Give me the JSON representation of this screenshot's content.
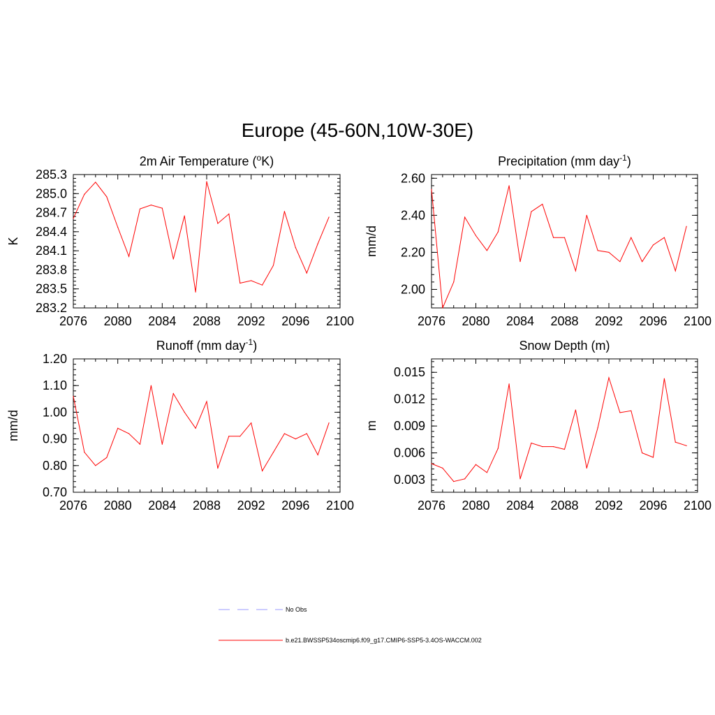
{
  "figure_title": "Europe (45-60N,10W-30E)",
  "colors": {
    "model_line": "#ff0000",
    "obs_line": "#9999ff",
    "axis": "#000000"
  },
  "legend": {
    "obs_label": "No Obs",
    "model_label": "b.e21.BWSSP534oscmip6.f09_g17.CMIP6-SSP5-3.4OS-WACCM.002"
  },
  "chart_data": [
    {
      "type": "line",
      "id": "temp",
      "title_main": "2m Air Temperature (",
      "title_sup": "o",
      "title_tail": "K)",
      "ylabel": "K",
      "xlim": [
        2076,
        2100
      ],
      "ylim": [
        283.2,
        285.3
      ],
      "xticks": [
        2076,
        2080,
        2084,
        2088,
        2092,
        2096,
        2100
      ],
      "yticks": [
        283.2,
        283.5,
        283.8,
        284.1,
        284.4,
        284.7,
        285.0,
        285.3
      ],
      "ytick_labels": [
        "283.2",
        "283.5",
        "283.8",
        "284.1",
        "284.4",
        "284.7",
        "285.0",
        "285.3"
      ],
      "x": [
        2076,
        2077,
        2078,
        2079,
        2080,
        2081,
        2082,
        2083,
        2084,
        2085,
        2086,
        2087,
        2088,
        2089,
        2090,
        2091,
        2092,
        2093,
        2094,
        2095,
        2096,
        2097,
        2098,
        2099
      ],
      "values": [
        284.61,
        284.99,
        285.18,
        284.95,
        284.47,
        284.01,
        284.76,
        284.82,
        284.77,
        283.97,
        284.65,
        283.45,
        285.19,
        284.53,
        284.68,
        283.59,
        283.63,
        283.56,
        283.87,
        284.72,
        284.15,
        283.75,
        284.21,
        284.63
      ]
    },
    {
      "type": "line",
      "id": "precip",
      "title_main": "Precipitation (mm day",
      "title_sup": "-1",
      "title_tail": ")",
      "ylabel": "mm/d",
      "xlim": [
        2076,
        2100
      ],
      "ylim": [
        1.9,
        2.62
      ],
      "xticks": [
        2076,
        2080,
        2084,
        2088,
        2092,
        2096,
        2100
      ],
      "yticks": [
        2.0,
        2.2,
        2.4,
        2.6
      ],
      "ytick_labels": [
        "2.00",
        "2.20",
        "2.40",
        "2.60"
      ],
      "x": [
        2076,
        2077,
        2078,
        2079,
        2080,
        2081,
        2082,
        2083,
        2084,
        2085,
        2086,
        2087,
        2088,
        2089,
        2090,
        2091,
        2092,
        2093,
        2094,
        2095,
        2096,
        2097,
        2098,
        2099
      ],
      "values": [
        2.54,
        1.9,
        2.04,
        2.39,
        2.29,
        2.21,
        2.31,
        2.56,
        2.15,
        2.42,
        2.46,
        2.28,
        2.28,
        2.1,
        2.4,
        2.21,
        2.2,
        2.15,
        2.28,
        2.15,
        2.24,
        2.28,
        2.1,
        2.34
      ]
    },
    {
      "type": "line",
      "id": "runoff",
      "title_main": "Runoff (mm day",
      "title_sup": "-1",
      "title_tail": ")",
      "ylabel": "mm/d",
      "xlim": [
        2076,
        2100
      ],
      "ylim": [
        0.7,
        1.2
      ],
      "xticks": [
        2076,
        2080,
        2084,
        2088,
        2092,
        2096,
        2100
      ],
      "yticks": [
        0.7,
        0.8,
        0.9,
        1.0,
        1.1,
        1.2
      ],
      "ytick_labels": [
        "0.70",
        "0.80",
        "0.90",
        "1.00",
        "1.10",
        "1.20"
      ],
      "x": [
        2076,
        2077,
        2078,
        2079,
        2080,
        2081,
        2082,
        2083,
        2084,
        2085,
        2086,
        2087,
        2088,
        2089,
        2090,
        2091,
        2092,
        2093,
        2094,
        2095,
        2096,
        2097,
        2098,
        2099
      ],
      "values": [
        1.06,
        0.85,
        0.8,
        0.83,
        0.94,
        0.92,
        0.88,
        1.1,
        0.88,
        1.07,
        1.0,
        0.94,
        1.04,
        0.79,
        0.91,
        0.91,
        0.96,
        0.78,
        0.85,
        0.92,
        0.9,
        0.92,
        0.84,
        0.96
      ]
    },
    {
      "type": "line",
      "id": "snow",
      "title_main": "Snow Depth (m)",
      "title_sup": "",
      "title_tail": "",
      "ylabel": "m",
      "xlim": [
        2076,
        2100
      ],
      "ylim": [
        0.0016,
        0.0165
      ],
      "xticks": [
        2076,
        2080,
        2084,
        2088,
        2092,
        2096,
        2100
      ],
      "yticks": [
        0.003,
        0.006,
        0.009,
        0.012,
        0.015
      ],
      "ytick_labels": [
        "0.003",
        "0.006",
        "0.009",
        "0.012",
        "0.015"
      ],
      "x": [
        2076,
        2077,
        2078,
        2079,
        2080,
        2081,
        2082,
        2083,
        2084,
        2085,
        2086,
        2087,
        2088,
        2089,
        2090,
        2091,
        2092,
        2093,
        2094,
        2095,
        2096,
        2097,
        2098,
        2099
      ],
      "values": [
        0.0048,
        0.0043,
        0.0028,
        0.0031,
        0.0047,
        0.0038,
        0.0065,
        0.0137,
        0.0031,
        0.0071,
        0.0067,
        0.0067,
        0.0064,
        0.0108,
        0.0043,
        0.0088,
        0.0144,
        0.0105,
        0.0107,
        0.006,
        0.0055,
        0.0143,
        0.0072,
        0.0068
      ]
    }
  ]
}
